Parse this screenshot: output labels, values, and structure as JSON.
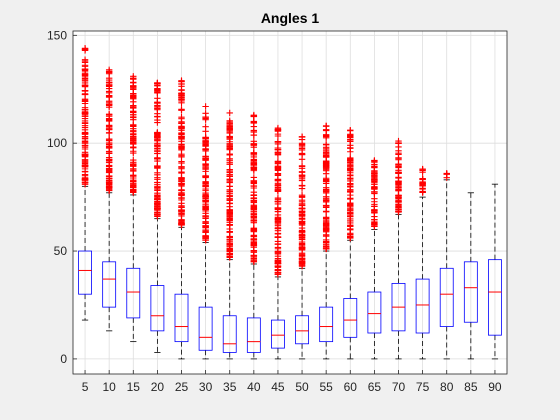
{
  "chart_data": {
    "type": "box",
    "title": "Angles 1",
    "xlabel": "",
    "ylabel": "",
    "categories": [
      "5",
      "10",
      "15",
      "20",
      "25",
      "30",
      "35",
      "40",
      "45",
      "50",
      "55",
      "60",
      "65",
      "70",
      "75",
      "80",
      "85",
      "90"
    ],
    "ylim": [
      -7,
      152
    ],
    "yticks": [
      0,
      50,
      100,
      150
    ],
    "grid": true,
    "boxes": [
      {
        "category": "5",
        "whisker_low": 18,
        "q1": 30,
        "median": 41,
        "q3": 50,
        "whisker_high": 80,
        "outlier_max": 144
      },
      {
        "category": "10",
        "whisker_low": 13,
        "q1": 24,
        "median": 37,
        "q3": 45,
        "whisker_high": 77,
        "outlier_max": 134
      },
      {
        "category": "15",
        "whisker_low": 8,
        "q1": 19,
        "median": 31,
        "q3": 42,
        "whisker_high": 76,
        "outlier_max": 131
      },
      {
        "category": "20",
        "whisker_low": 3,
        "q1": 13,
        "median": 20,
        "q3": 34,
        "whisker_high": 65,
        "outlier_max": 128
      },
      {
        "category": "25",
        "whisker_low": 0,
        "q1": 8,
        "median": 15,
        "q3": 30,
        "whisker_high": 61,
        "outlier_max": 129
      },
      {
        "category": "30",
        "whisker_low": 0,
        "q1": 4,
        "median": 10,
        "q3": 24,
        "whisker_high": 54,
        "outlier_max": 117
      },
      {
        "category": "35",
        "whisker_low": 0,
        "q1": 3,
        "median": 7,
        "q3": 20,
        "whisker_high": 46,
        "outlier_max": 114
      },
      {
        "category": "40",
        "whisker_low": 0,
        "q1": 3,
        "median": 8,
        "q3": 19,
        "whisker_high": 44,
        "outlier_max": 113
      },
      {
        "category": "45",
        "whisker_low": 0,
        "q1": 5,
        "median": 11,
        "q3": 18,
        "whisker_high": 38,
        "outlier_max": 107
      },
      {
        "category": "50",
        "whisker_low": 0,
        "q1": 7,
        "median": 13,
        "q3": 20,
        "whisker_high": 42,
        "outlier_max": 103
      },
      {
        "category": "55",
        "whisker_low": 0,
        "q1": 8,
        "median": 15,
        "q3": 24,
        "whisker_high": 50,
        "outlier_max": 108
      },
      {
        "category": "60",
        "whisker_low": 0,
        "q1": 10,
        "median": 18,
        "q3": 28,
        "whisker_high": 55,
        "outlier_max": 106
      },
      {
        "category": "65",
        "whisker_low": 0,
        "q1": 12,
        "median": 21,
        "q3": 31,
        "whisker_high": 60,
        "outlier_max": 92
      },
      {
        "category": "70",
        "whisker_low": 0,
        "q1": 13,
        "median": 24,
        "q3": 35,
        "whisker_high": 67,
        "outlier_max": 101
      },
      {
        "category": "75",
        "whisker_low": 0,
        "q1": 12,
        "median": 25,
        "q3": 37,
        "whisker_high": 75,
        "outlier_max": 88
      },
      {
        "category": "80",
        "whisker_low": 0,
        "q1": 15,
        "median": 30,
        "q3": 42,
        "whisker_high": 83,
        "outlier_max": 86
      },
      {
        "category": "85",
        "whisker_low": 0,
        "q1": 17,
        "median": 33,
        "q3": 45,
        "whisker_high": 77,
        "outlier_max": null
      },
      {
        "category": "90",
        "whisker_low": 0,
        "q1": 11,
        "median": 31,
        "q3": 46,
        "whisker_high": 81,
        "outlier_max": null
      }
    ],
    "colors": {
      "box": "#0000ff",
      "median": "#ff0000",
      "outlier": "#ff0000",
      "whisker": "#000000",
      "axes_bg": "#ffffff",
      "figure_bg": "#f0f0f0",
      "grid": "#dedede"
    }
  }
}
